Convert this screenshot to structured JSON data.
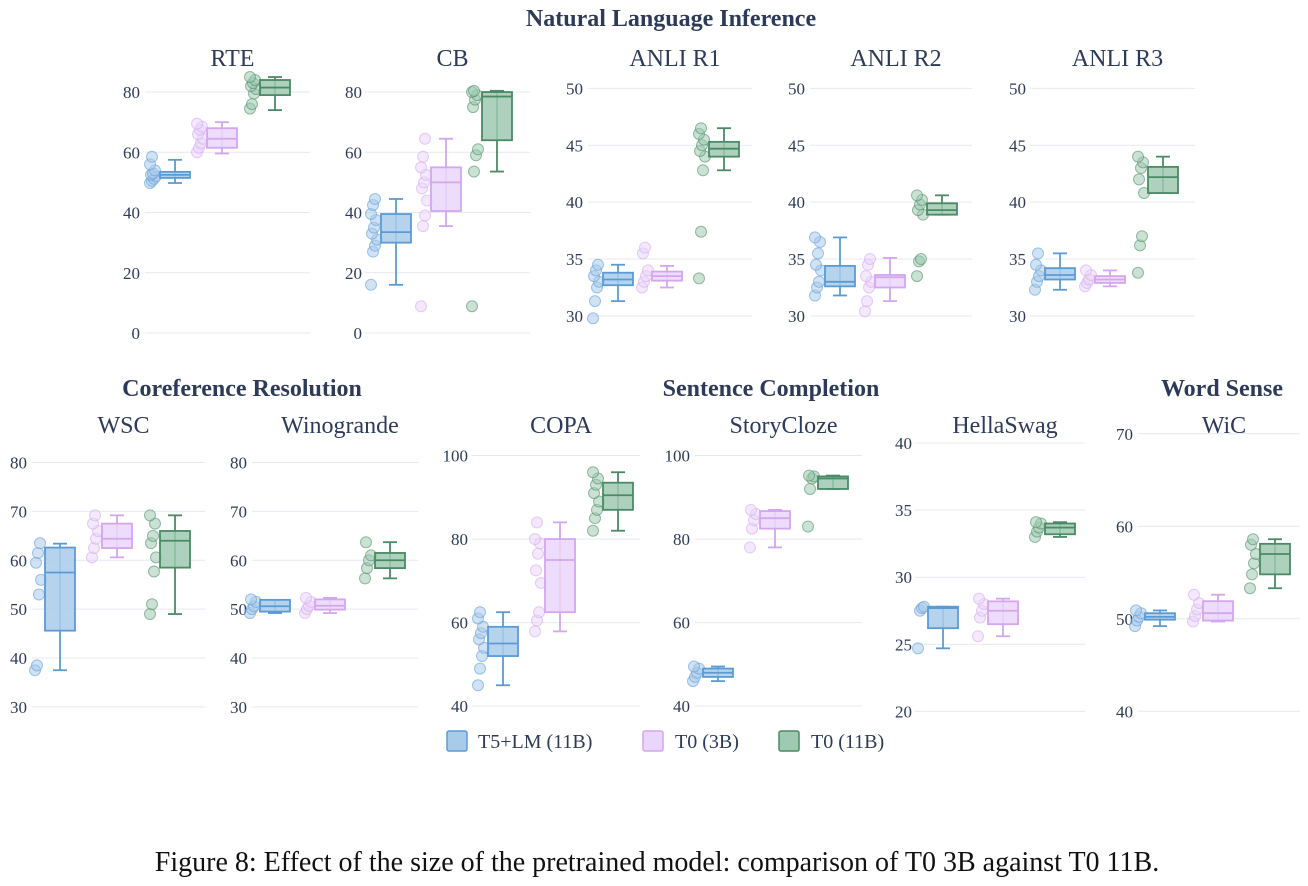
{
  "figure": {
    "caption": "Figure 8: Effect of the size of the pretrained model: comparison of T0 3B against T0 11B.",
    "groups": [
      {
        "label": "Natural Language Inference"
      },
      {
        "label": "Coreference Resolution"
      },
      {
        "label": "Sentence Completion"
      },
      {
        "label": "Word Sense"
      }
    ],
    "legend": [
      {
        "name": "T5+LM (11B)",
        "fill": "#a9cbea",
        "stroke": "#5b9bd5"
      },
      {
        "name": "T0 (3B)",
        "fill": "#ead6fa",
        "stroke": "#d4a6f0"
      },
      {
        "name": "T0 (11B)",
        "fill": "#9fc9b0",
        "stroke": "#4a8a64"
      }
    ]
  },
  "chart_data": [
    {
      "type": "box",
      "title": "RTE",
      "group": "Natural Language Inference",
      "ylim": [
        0,
        85
      ],
      "yticks": [
        "0",
        "20",
        "40",
        "60",
        "80"
      ],
      "series": [
        {
          "name": "T5+LM (11B)",
          "min": 49.8,
          "q1": 51.5,
          "median": 52.5,
          "q3": 53.5,
          "max": 57.5,
          "points": [
            49.8,
            50.5,
            51.2,
            52.0,
            52.5,
            53.0,
            54.0,
            56.0,
            58.5
          ]
        },
        {
          "name": "T0 (3B)",
          "min": 59.6,
          "q1": 61.5,
          "median": 64.5,
          "q3": 68.0,
          "max": 70.0,
          "points": [
            60.0,
            61.5,
            63.0,
            64.5,
            66.0,
            67.5,
            68.5,
            69.5
          ]
        },
        {
          "name": "T0 (11B)",
          "min": 74.0,
          "q1": 79.0,
          "median": 81.5,
          "q3": 84.0,
          "max": 85.0,
          "points": [
            74.5,
            76.0,
            79.5,
            81.0,
            82.0,
            83.0,
            84.0,
            85.0
          ]
        }
      ]
    },
    {
      "type": "box",
      "title": "CB",
      "group": "Natural Language Inference",
      "ylim": [
        0,
        85
      ],
      "yticks": [
        "0",
        "20",
        "40",
        "60",
        "80"
      ],
      "series": [
        {
          "name": "T5+LM (11B)",
          "min": 16.0,
          "q1": 30.0,
          "median": 33.5,
          "q3": 39.5,
          "max": 44.5,
          "points": [
            16.0,
            27.0,
            29.0,
            31.0,
            33.0,
            35.0,
            37.5,
            39.5,
            42.5,
            44.5
          ]
        },
        {
          "name": "T0 (3B)",
          "min": 35.5,
          "q1": 40.5,
          "median": 50.0,
          "q3": 55.0,
          "max": 64.5,
          "points": [
            8.9,
            35.5,
            39.0,
            44.0,
            48.0,
            50.0,
            52.5,
            55.0,
            58.5,
            64.5
          ]
        },
        {
          "name": "T0 (11B)",
          "min": 53.6,
          "q1": 64.0,
          "median": 78.5,
          "q3": 80.0,
          "max": 80.4,
          "points": [
            8.9,
            53.6,
            59.0,
            61.0,
            75.0,
            77.5,
            79.0,
            80.0,
            80.4
          ]
        }
      ]
    },
    {
      "type": "box",
      "title": "ANLI R1",
      "group": "Natural Language Inference",
      "ylim": [
        28.5,
        51
      ],
      "yticks": [
        "30",
        "35",
        "40",
        "45",
        "50"
      ],
      "series": [
        {
          "name": "T5+LM (11B)",
          "min": 31.3,
          "q1": 32.7,
          "median": 33.2,
          "q3": 33.8,
          "max": 34.5,
          "points": [
            29.8,
            31.3,
            32.5,
            33.0,
            33.5,
            34.0,
            34.5
          ]
        },
        {
          "name": "T0 (3B)",
          "min": 32.5,
          "q1": 33.1,
          "median": 33.5,
          "q3": 33.9,
          "max": 34.4,
          "points": [
            32.5,
            33.0,
            33.5,
            34.0,
            35.5,
            36.0
          ]
        },
        {
          "name": "T0 (11B)",
          "min": 42.8,
          "q1": 44.0,
          "median": 44.7,
          "q3": 45.3,
          "max": 46.5,
          "points": [
            33.3,
            37.4,
            42.8,
            44.0,
            44.5,
            45.0,
            45.5,
            46.0,
            46.5
          ]
        }
      ]
    },
    {
      "type": "box",
      "title": "ANLI R2",
      "group": "Natural Language Inference",
      "ylim": [
        28.5,
        51
      ],
      "yticks": [
        "30",
        "35",
        "40",
        "45",
        "50"
      ],
      "series": [
        {
          "name": "T5+LM (11B)",
          "min": 31.8,
          "q1": 32.6,
          "median": 33.0,
          "q3": 34.4,
          "max": 36.9,
          "points": [
            31.8,
            32.5,
            33.0,
            34.0,
            34.5,
            35.5,
            36.5,
            36.9
          ]
        },
        {
          "name": "T0 (3B)",
          "min": 31.3,
          "q1": 32.5,
          "median": 33.4,
          "q3": 33.6,
          "max": 35.1,
          "points": [
            30.4,
            31.3,
            32.5,
            33.0,
            33.5,
            34.5,
            35.0
          ]
        },
        {
          "name": "T0 (11B)",
          "min": 38.9,
          "q1": 38.9,
          "median": 39.3,
          "q3": 39.9,
          "max": 40.6,
          "points": [
            33.5,
            34.8,
            35.0,
            38.9,
            39.3,
            39.8,
            40.2,
            40.6
          ]
        }
      ]
    },
    {
      "type": "box",
      "title": "ANLI R3",
      "group": "Natural Language Inference",
      "ylim": [
        28.5,
        51
      ],
      "yticks": [
        "30",
        "35",
        "40",
        "45",
        "50"
      ],
      "series": [
        {
          "name": "T5+LM (11B)",
          "min": 32.3,
          "q1": 33.2,
          "median": 33.6,
          "q3": 34.2,
          "max": 35.5,
          "points": [
            32.3,
            33.0,
            33.5,
            34.0,
            34.5,
            35.5
          ]
        },
        {
          "name": "T0 (3B)",
          "min": 32.6,
          "q1": 32.9,
          "median": 33.2,
          "q3": 33.5,
          "max": 34.0,
          "points": [
            32.6,
            32.9,
            33.2,
            33.6,
            34.0
          ]
        },
        {
          "name": "T0 (11B)",
          "min": 40.8,
          "q1": 40.8,
          "median": 42.2,
          "q3": 43.1,
          "max": 44.0,
          "points": [
            33.8,
            36.2,
            37.0,
            40.8,
            42.0,
            43.0,
            43.5,
            44.0
          ]
        }
      ]
    },
    {
      "type": "box",
      "title": "WSC",
      "group": "Coreference Resolution",
      "ylim": [
        31,
        84
      ],
      "yticks": [
        "30",
        "40",
        "50",
        "60",
        "70",
        "80"
      ],
      "series": [
        {
          "name": "T5+LM (11B)",
          "min": 37.5,
          "q1": 45.6,
          "median": 57.5,
          "q3": 62.6,
          "max": 63.4,
          "points": [
            37.5,
            38.5,
            53.0,
            56.0,
            59.5,
            61.5,
            63.5
          ]
        },
        {
          "name": "T0 (3B)",
          "min": 60.6,
          "q1": 62.5,
          "median": 64.4,
          "q3": 67.5,
          "max": 69.2,
          "points": [
            60.6,
            62.5,
            64.4,
            66.0,
            67.5,
            69.2
          ]
        },
        {
          "name": "T0 (11B)",
          "min": 49.0,
          "q1": 58.5,
          "median": 64.0,
          "q3": 66.0,
          "max": 69.2,
          "points": [
            49.0,
            51.0,
            57.7,
            60.6,
            63.5,
            65.0,
            67.5,
            69.2
          ]
        }
      ]
    },
    {
      "type": "box",
      "title": "Winogrande",
      "group": "Coreference Resolution",
      "ylim": [
        31,
        84
      ],
      "yticks": [
        "30",
        "40",
        "50",
        "60",
        "70",
        "80"
      ],
      "series": [
        {
          "name": "T5+LM (11B)",
          "min": 49.2,
          "q1": 49.5,
          "median": 50.6,
          "q3": 51.9,
          "max": 51.9,
          "points": [
            49.2,
            50.0,
            50.6,
            51.5,
            52.0
          ]
        },
        {
          "name": "T0 (3B)",
          "min": 49.2,
          "q1": 49.9,
          "median": 50.7,
          "q3": 52.0,
          "max": 52.3,
          "points": [
            49.2,
            50.0,
            50.7,
            51.5,
            52.3
          ]
        },
        {
          "name": "T0 (11B)",
          "min": 56.3,
          "q1": 58.4,
          "median": 60.0,
          "q3": 61.5,
          "max": 63.7,
          "points": [
            56.3,
            58.4,
            60.0,
            61.0,
            63.7
          ]
        }
      ]
    },
    {
      "type": "box",
      "title": "COPA",
      "group": "Sentence Completion",
      "ylim": [
        41,
        103
      ],
      "yticks": [
        "40",
        "60",
        "80",
        "100"
      ],
      "series": [
        {
          "name": "T5+LM (11B)",
          "min": 45.0,
          "q1": 52.0,
          "median": 55.0,
          "q3": 59.0,
          "max": 62.5,
          "points": [
            45.0,
            49.0,
            52.0,
            54.0,
            56.0,
            57.5,
            59.0,
            61.0,
            62.5
          ]
        },
        {
          "name": "T0 (3B)",
          "min": 57.9,
          "q1": 62.5,
          "median": 75.0,
          "q3": 80.0,
          "max": 84.0,
          "points": [
            57.9,
            60.5,
            62.5,
            69.5,
            72.5,
            76.5,
            79.0,
            80.0,
            84.0
          ]
        },
        {
          "name": "T0 (11B)",
          "min": 82.0,
          "q1": 87.0,
          "median": 90.5,
          "q3": 93.5,
          "max": 96.0,
          "points": [
            82.0,
            85.0,
            87.0,
            89.0,
            91.0,
            93.0,
            94.5,
            96.0
          ]
        }
      ]
    },
    {
      "type": "box",
      "title": "StoryCloze",
      "group": "Sentence Completion",
      "ylim": [
        41,
        103
      ],
      "yticks": [
        "40",
        "60",
        "80",
        "100"
      ],
      "series": [
        {
          "name": "T5+LM (11B)",
          "min": 46.0,
          "q1": 47.0,
          "median": 48.0,
          "q3": 49.0,
          "max": 49.5,
          "points": [
            46.0,
            47.0,
            48.0,
            49.0,
            49.5
          ]
        },
        {
          "name": "T0 (3B)",
          "min": 78.0,
          "q1": 82.5,
          "median": 85.0,
          "q3": 86.7,
          "max": 87.0,
          "points": [
            78.0,
            82.5,
            84.5,
            86.0,
            87.0
          ]
        },
        {
          "name": "T0 (11B)",
          "min": 92.0,
          "q1": 92.0,
          "median": 94.5,
          "q3": 95.0,
          "max": 95.2,
          "points": [
            83.0,
            92.0,
            94.5,
            95.0,
            95.2
          ]
        }
      ]
    },
    {
      "type": "box",
      "title": "HellaSwag",
      "group": "Sentence Completion",
      "ylim": [
        20.7,
        40
      ],
      "yticks": [
        "20",
        "25",
        "30",
        "35",
        "40"
      ],
      "series": [
        {
          "name": "T5+LM (11B)",
          "min": 24.7,
          "q1": 26.2,
          "median": 27.7,
          "q3": 27.8,
          "max": 27.8,
          "points": [
            24.7,
            27.5,
            27.7,
            27.8
          ]
        },
        {
          "name": "T0 (3B)",
          "min": 25.6,
          "q1": 26.5,
          "median": 27.5,
          "q3": 28.2,
          "max": 28.4,
          "points": [
            25.6,
            27.0,
            27.5,
            28.0,
            28.4
          ]
        },
        {
          "name": "T0 (11B)",
          "min": 33.0,
          "q1": 33.2,
          "median": 33.7,
          "q3": 34.0,
          "max": 34.1,
          "points": [
            33.0,
            33.4,
            33.7,
            34.0,
            34.1
          ]
        }
      ]
    },
    {
      "type": "box",
      "title": "WiC",
      "group": "Word Sense",
      "ylim": [
        41,
        69
      ],
      "yticks": [
        "40",
        "50",
        "60",
        "70"
      ],
      "series": [
        {
          "name": "T5+LM (11B)",
          "min": 49.2,
          "q1": 49.9,
          "median": 50.2,
          "q3": 50.6,
          "max": 50.9,
          "points": [
            49.2,
            49.8,
            50.2,
            50.6,
            50.9
          ]
        },
        {
          "name": "T0 (3B)",
          "min": 49.7,
          "q1": 49.8,
          "median": 50.6,
          "q3": 51.9,
          "max": 52.6,
          "points": [
            49.7,
            50.3,
            51.0,
            51.7,
            52.6
          ]
        },
        {
          "name": "T0 (11B)",
          "min": 53.3,
          "q1": 54.8,
          "median": 57.0,
          "q3": 58.1,
          "max": 58.6,
          "points": [
            53.3,
            54.8,
            56.0,
            57.0,
            58.0,
            58.6
          ]
        }
      ]
    }
  ]
}
